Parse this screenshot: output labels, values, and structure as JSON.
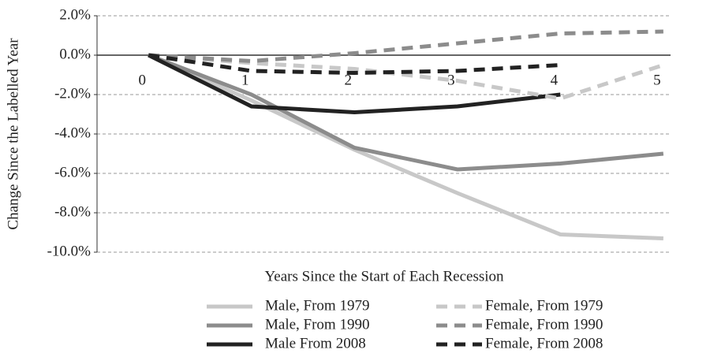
{
  "chart_data": {
    "type": "line",
    "x_label": "Years Since the Start of Each Recession",
    "y_label": "Change Since the Labelled Year",
    "x": [
      0,
      1,
      2,
      3,
      4,
      5
    ],
    "xlim": [
      -0.5,
      5.07
    ],
    "xticks": [
      0,
      1,
      2,
      3,
      4,
      5
    ],
    "ylim": [
      -10,
      2
    ],
    "yticks": [
      {
        "value": 2,
        "label": "2.0%"
      },
      {
        "value": 0,
        "label": "0.0%"
      },
      {
        "value": -2,
        "label": "-2.0%"
      },
      {
        "value": -4,
        "label": "-4.0%"
      },
      {
        "value": -6,
        "label": "-6.0%"
      },
      {
        "value": -8,
        "label": "-8.0%"
      },
      {
        "value": -10,
        "label": "-10.0%"
      }
    ],
    "grid": true,
    "series": [
      {
        "name": "Male, From 1979",
        "color": "#c8c8c8",
        "line_style": "solid",
        "values": [
          0,
          -2.3,
          -4.8,
          -7.0,
          -9.1,
          -9.3
        ]
      },
      {
        "name": "Male, From 1990",
        "color": "#8c8c8c",
        "line_style": "solid",
        "values": [
          0,
          -2.0,
          -4.7,
          -5.8,
          -5.5,
          -5.0
        ]
      },
      {
        "name": "Male From 2008",
        "color": "#222222",
        "line_style": "solid",
        "values": [
          0,
          -2.6,
          -2.9,
          -2.6,
          -2.0,
          null
        ]
      },
      {
        "name": "Female, From 1979",
        "color": "#c8c8c8",
        "line_style": "dashed",
        "values": [
          0,
          -0.4,
          -0.7,
          -1.3,
          -2.2,
          -0.5
        ]
      },
      {
        "name": "Female, From 1990",
        "color": "#8c8c8c",
        "line_style": "dashed",
        "values": [
          0,
          -0.3,
          0.1,
          0.6,
          1.1,
          1.2
        ]
      },
      {
        "name": "Female, From 2008",
        "color": "#222222",
        "line_style": "dashed",
        "values": [
          0,
          -0.8,
          -0.9,
          -0.8,
          -0.5,
          null
        ]
      }
    ]
  }
}
